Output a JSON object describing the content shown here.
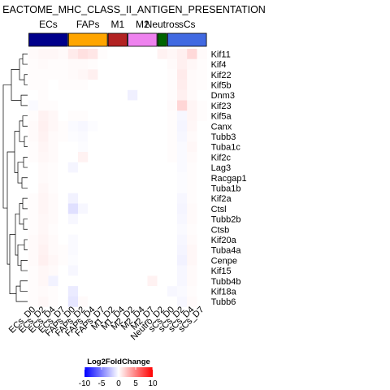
{
  "chart_data": {
    "type": "heatmap",
    "title": "EACTOME_MHC_CLASS_II_ANTIGEN_PRESENTATION",
    "legend": {
      "title": "Log2FoldChange",
      "ticks": [
        -10,
        -5,
        0,
        5,
        10
      ],
      "range": [
        -10,
        10
      ],
      "colors": [
        "#0000ff",
        "#ffffff",
        "#ff0000"
      ]
    },
    "groups": [
      {
        "name": "ECs",
        "color": "#00008b",
        "columns": 4
      },
      {
        "name": "FAPs",
        "color": "#ffa500",
        "columns": 4
      },
      {
        "name": "M1",
        "color": "#b22222",
        "columns": 2
      },
      {
        "name": "M2",
        "color": "#ee82ee",
        "columns": 3
      },
      {
        "name": "Neutros",
        "color": "#006400",
        "columns": 1
      },
      {
        "name": "sCs",
        "color": "#4169e1",
        "columns": 4
      }
    ],
    "columns": [
      "ECs_D0",
      "ECs_D2",
      "ECs_D4",
      "ECs_D7",
      "FAPs_D0",
      "FAPs_D2",
      "FAPs_D4",
      "FAPs_D7",
      "M1_D2",
      "M1_D4",
      "M2_D2",
      "M2_D4",
      "M2_D7",
      "Neutro_D2",
      "sCs_D0",
      "sCs_D2",
      "sCs_D4",
      "sCs_D7"
    ],
    "rows": [
      "Kif11",
      "Kif4",
      "Kif22",
      "Kif5b",
      "Dnm3",
      "Kif23",
      "Kif5a",
      "Canx",
      "Tubb3",
      "Tuba1c",
      "Kif2c",
      "Lag3",
      "Racgap1",
      "Tuba1b",
      "Kif2a",
      "Ctsl",
      "Tubb2b",
      "Ctsb",
      "Kif20a",
      "Tuba4a",
      "Cenpe",
      "Kif15",
      "Tubb4b",
      "Kif18a",
      "Tubb6"
    ],
    "values": [
      [
        0.2,
        0.3,
        0.3,
        0.2,
        0.8,
        1.2,
        1.0,
        0.1,
        0.0,
        0.0,
        0.0,
        0.0,
        0.0,
        0.5,
        0.3,
        0.6,
        1.5,
        0.2
      ],
      [
        0.1,
        0.2,
        0.1,
        0.1,
        0.2,
        0.2,
        0.1,
        0.0,
        0.0,
        0.0,
        0.0,
        0.0,
        0.0,
        0.0,
        0.2,
        0.6,
        0.3,
        0.1
      ],
      [
        0.1,
        0.1,
        0.1,
        0.1,
        0.2,
        0.3,
        0.6,
        0.0,
        0.0,
        0.0,
        0.0,
        0.0,
        0.0,
        0.0,
        0.1,
        0.8,
        0.2,
        0.1
      ],
      [
        0.1,
        0.1,
        0.0,
        0.1,
        0.1,
        0.1,
        0.0,
        0.0,
        0.0,
        0.0,
        0.0,
        0.0,
        0.0,
        0.0,
        0.1,
        0.7,
        0.2,
        0.1
      ],
      [
        0.0,
        0.1,
        0.0,
        0.0,
        0.0,
        0.0,
        0.0,
        0.0,
        0.0,
        0.0,
        -0.6,
        0.0,
        0.0,
        0.0,
        0.1,
        0.6,
        0.2,
        0.0
      ],
      [
        -0.2,
        0.1,
        0.1,
        0.0,
        0.0,
        0.0,
        0.0,
        0.0,
        0.0,
        0.0,
        0.0,
        0.0,
        0.0,
        0.0,
        0.2,
        1.6,
        0.4,
        0.1
      ],
      [
        0.1,
        0.5,
        0.3,
        0.0,
        0.1,
        0.1,
        0.0,
        0.0,
        0.0,
        0.0,
        0.0,
        0.0,
        0.0,
        0.0,
        0.1,
        -0.3,
        0.4,
        0.1
      ],
      [
        0.2,
        0.6,
        0.3,
        0.1,
        -0.2,
        -0.3,
        -0.1,
        0.0,
        0.0,
        0.0,
        0.0,
        0.0,
        0.0,
        0.0,
        0.1,
        -0.4,
        0.3,
        0.0
      ],
      [
        0.2,
        0.5,
        0.2,
        0.1,
        -0.1,
        -0.2,
        0.0,
        0.0,
        0.0,
        0.0,
        0.0,
        0.0,
        0.0,
        0.0,
        0.1,
        -0.3,
        0.2,
        0.0
      ],
      [
        0.1,
        0.4,
        0.2,
        0.0,
        0.0,
        -0.1,
        0.0,
        0.0,
        0.0,
        0.0,
        0.0,
        0.0,
        0.0,
        0.0,
        0.1,
        -0.2,
        0.3,
        0.0
      ],
      [
        0.1,
        0.3,
        0.2,
        0.0,
        0.0,
        0.5,
        0.0,
        0.0,
        0.0,
        0.0,
        0.0,
        0.0,
        0.0,
        0.0,
        0.1,
        -0.2,
        0.2,
        0.0
      ],
      [
        0.0,
        0.2,
        0.1,
        0.0,
        -0.4,
        0.0,
        0.0,
        0.0,
        0.0,
        0.0,
        0.0,
        0.0,
        0.0,
        0.0,
        0.0,
        -0.2,
        0.1,
        0.0
      ],
      [
        0.0,
        0.2,
        0.1,
        0.0,
        0.0,
        0.0,
        0.0,
        0.0,
        0.0,
        0.0,
        0.0,
        0.0,
        0.0,
        0.0,
        0.0,
        -0.1,
        0.1,
        0.0
      ],
      [
        0.0,
        0.3,
        0.1,
        0.0,
        0.0,
        0.0,
        0.0,
        0.0,
        0.0,
        0.0,
        0.0,
        0.0,
        0.0,
        0.0,
        0.0,
        -0.1,
        0.1,
        0.0
      ],
      [
        0.1,
        0.4,
        0.2,
        0.0,
        -0.5,
        0.0,
        0.0,
        0.0,
        0.0,
        0.0,
        0.0,
        0.0,
        0.0,
        0.0,
        0.0,
        -0.3,
        0.1,
        0.0
      ],
      [
        0.1,
        0.4,
        0.2,
        0.0,
        -1.2,
        -0.3,
        0.0,
        0.0,
        0.0,
        0.0,
        0.0,
        0.0,
        0.0,
        0.0,
        0.0,
        -0.4,
        0.2,
        0.0
      ],
      [
        0.1,
        0.3,
        0.2,
        0.0,
        -0.3,
        0.0,
        0.0,
        0.0,
        0.0,
        0.0,
        0.0,
        0.0,
        0.0,
        0.0,
        0.0,
        -0.3,
        0.2,
        0.0
      ],
      [
        0.1,
        0.3,
        0.1,
        0.0,
        0.0,
        0.0,
        0.0,
        0.0,
        0.0,
        0.0,
        0.0,
        0.0,
        0.0,
        0.0,
        0.0,
        -0.2,
        0.1,
        0.0
      ],
      [
        0.2,
        0.4,
        0.2,
        0.0,
        -0.2,
        0.0,
        0.0,
        0.0,
        0.0,
        0.0,
        0.0,
        0.0,
        0.0,
        0.0,
        0.0,
        -0.3,
        0.2,
        0.0
      ],
      [
        0.2,
        0.5,
        0.2,
        0.1,
        -0.2,
        0.0,
        0.0,
        0.0,
        0.0,
        0.0,
        0.0,
        0.0,
        0.0,
        0.0,
        0.0,
        -0.4,
        0.3,
        0.0
      ],
      [
        0.2,
        0.6,
        0.3,
        0.1,
        -0.1,
        0.0,
        0.0,
        0.0,
        0.0,
        0.0,
        0.0,
        0.0,
        0.0,
        0.0,
        0.0,
        -0.5,
        0.3,
        0.0
      ],
      [
        0.1,
        0.3,
        0.2,
        0.0,
        -0.3,
        0.0,
        0.0,
        0.0,
        0.0,
        0.0,
        0.0,
        0.0,
        0.0,
        0.0,
        0.0,
        -0.3,
        0.2,
        0.0
      ],
      [
        0.1,
        0.3,
        -0.5,
        0.0,
        0.0,
        0.0,
        0.0,
        0.0,
        0.0,
        0.0,
        0.0,
        0.0,
        0.5,
        0.0,
        0.0,
        -0.3,
        0.2,
        0.0
      ],
      [
        0.1,
        0.2,
        0.1,
        0.0,
        -0.8,
        0.0,
        0.0,
        0.0,
        0.0,
        0.0,
        0.0,
        0.0,
        0.0,
        0.0,
        -0.3,
        -0.2,
        0.1,
        0.0
      ],
      [
        0.1,
        0.3,
        0.1,
        0.0,
        -1.0,
        0.2,
        0.0,
        0.0,
        0.0,
        0.0,
        0.0,
        0.0,
        0.0,
        0.0,
        0.0,
        -0.3,
        0.2,
        0.0
      ]
    ]
  }
}
